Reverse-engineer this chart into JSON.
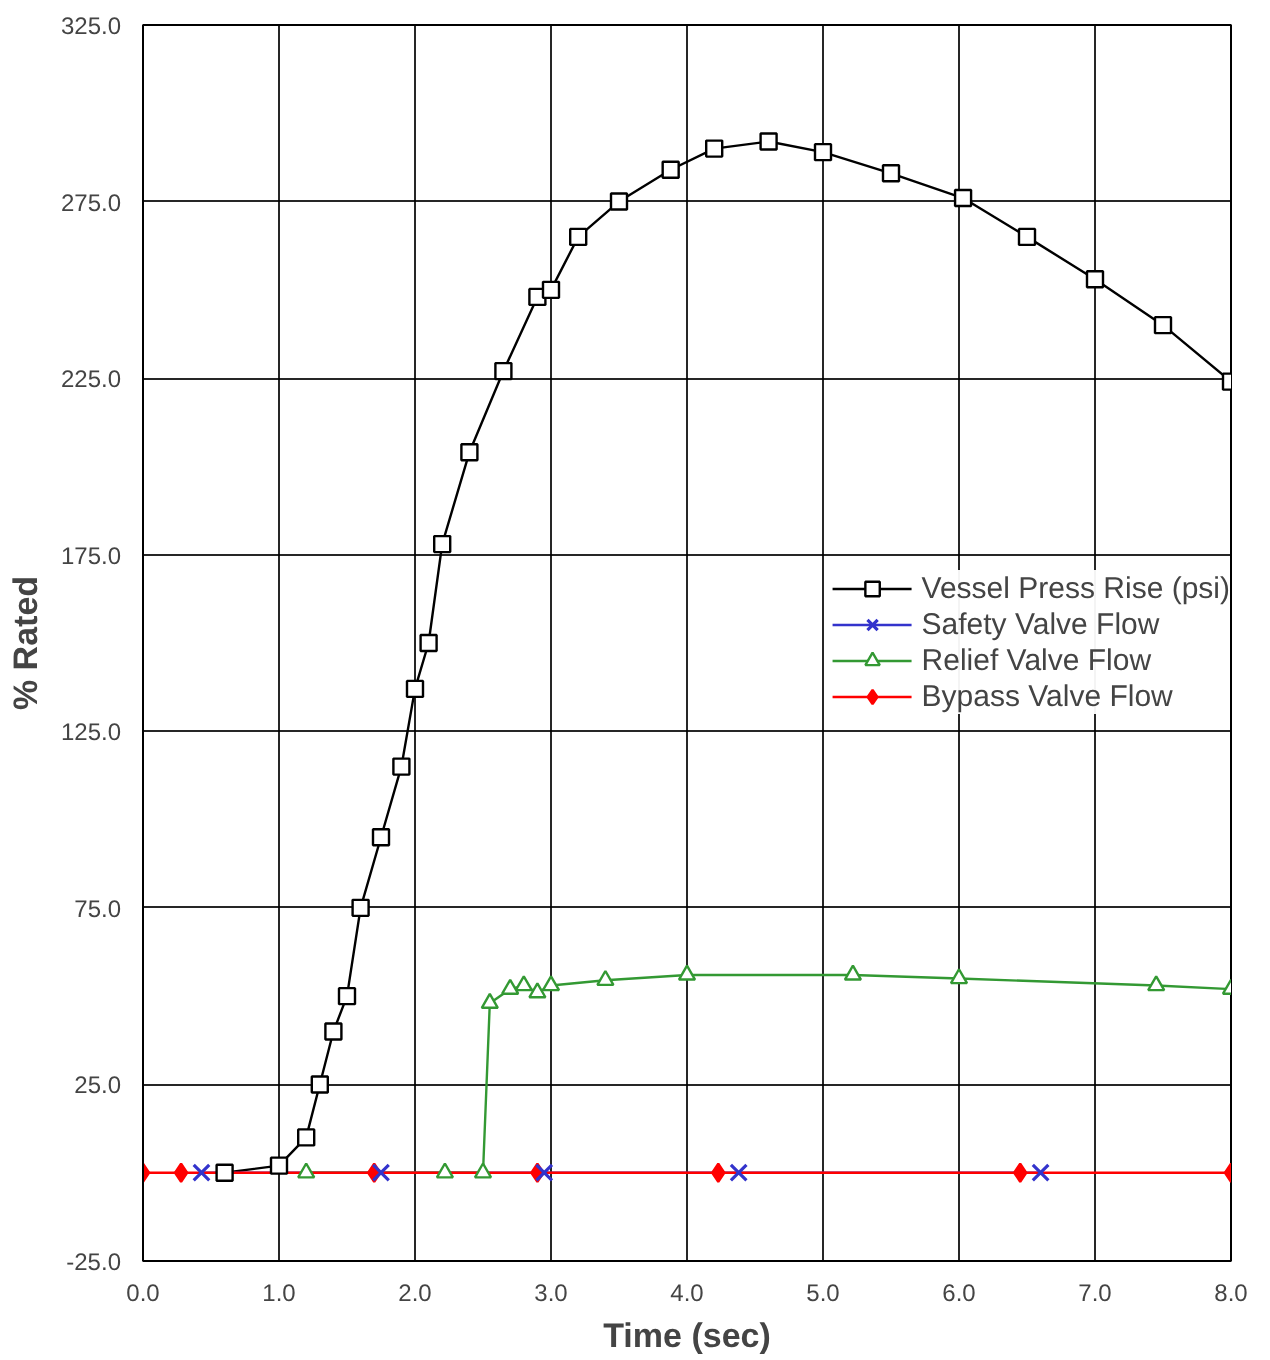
{
  "chart_data": {
    "type": "line",
    "xlabel": "Time (sec)",
    "ylabel": "% Rated",
    "xlim": [
      0,
      8
    ],
    "ylim": [
      -25,
      325
    ],
    "xticks": [
      {
        "value": 0,
        "label": "0.0"
      },
      {
        "value": 1,
        "label": "1.0"
      },
      {
        "value": 2,
        "label": "2.0"
      },
      {
        "value": 3,
        "label": "3.0"
      },
      {
        "value": 4,
        "label": "4.0"
      },
      {
        "value": 5,
        "label": "5.0"
      },
      {
        "value": 6,
        "label": "6.0"
      },
      {
        "value": 7,
        "label": "7.0"
      },
      {
        "value": 8,
        "label": "8.0"
      }
    ],
    "yticks": [
      {
        "value": -25,
        "label": "-25.0"
      },
      {
        "value": 25,
        "label": "25.0"
      },
      {
        "value": 75,
        "label": "75.0"
      },
      {
        "value": 125,
        "label": "125.0"
      },
      {
        "value": 175,
        "label": "175.0"
      },
      {
        "value": 225,
        "label": "225.0"
      },
      {
        "value": 275,
        "label": "275.0"
      },
      {
        "value": 325,
        "label": "325.0"
      }
    ],
    "grid": true,
    "legend": "right",
    "line_style": "solid",
    "series": [
      {
        "name": "Vessel Press Rise (psi)",
        "color": "#000000",
        "marker": "square",
        "x": [
          0.6,
          1.0,
          1.2,
          1.3,
          1.4,
          1.5,
          1.6,
          1.75,
          1.9,
          2.0,
          2.1,
          2.2,
          2.4,
          2.65,
          2.9,
          3.0,
          3.2,
          3.5,
          3.88,
          4.2,
          4.6,
          5.0,
          5.5,
          6.03,
          6.5,
          7.0,
          7.5,
          8.0
        ],
        "values": [
          0,
          2,
          10,
          25,
          40,
          50,
          75,
          95,
          115,
          137,
          150,
          178,
          204,
          227,
          248,
          250,
          265,
          275,
          284,
          290,
          292,
          289,
          283,
          276,
          265,
          253,
          240,
          224
        ]
      },
      {
        "name": "Safety Valve Flow",
        "color": "#3333cc",
        "marker": "cross",
        "x": [
          0.43,
          1.75,
          2.95,
          4.38,
          6.6
        ],
        "values": [
          0,
          0,
          0,
          0,
          0
        ]
      },
      {
        "name": "Relief Valve Flow",
        "color": "#339933",
        "marker": "triangle",
        "x": [
          1.2,
          2.22,
          2.5,
          2.55,
          2.7,
          2.8,
          2.9,
          3.0,
          3.4,
          4.0,
          5.22,
          6.0,
          7.45,
          8.0
        ],
        "values": [
          0,
          0,
          0,
          48,
          52,
          53,
          51,
          53,
          54.5,
          56,
          56,
          55,
          53,
          52
        ]
      },
      {
        "name": "Bypass Valve Flow",
        "color": "#ff0000",
        "marker": "diamond",
        "x": [
          0.0,
          0.28,
          1.7,
          2.9,
          4.23,
          6.45,
          8.0
        ],
        "values": [
          0,
          0,
          0,
          0,
          0,
          0,
          0
        ]
      }
    ]
  }
}
